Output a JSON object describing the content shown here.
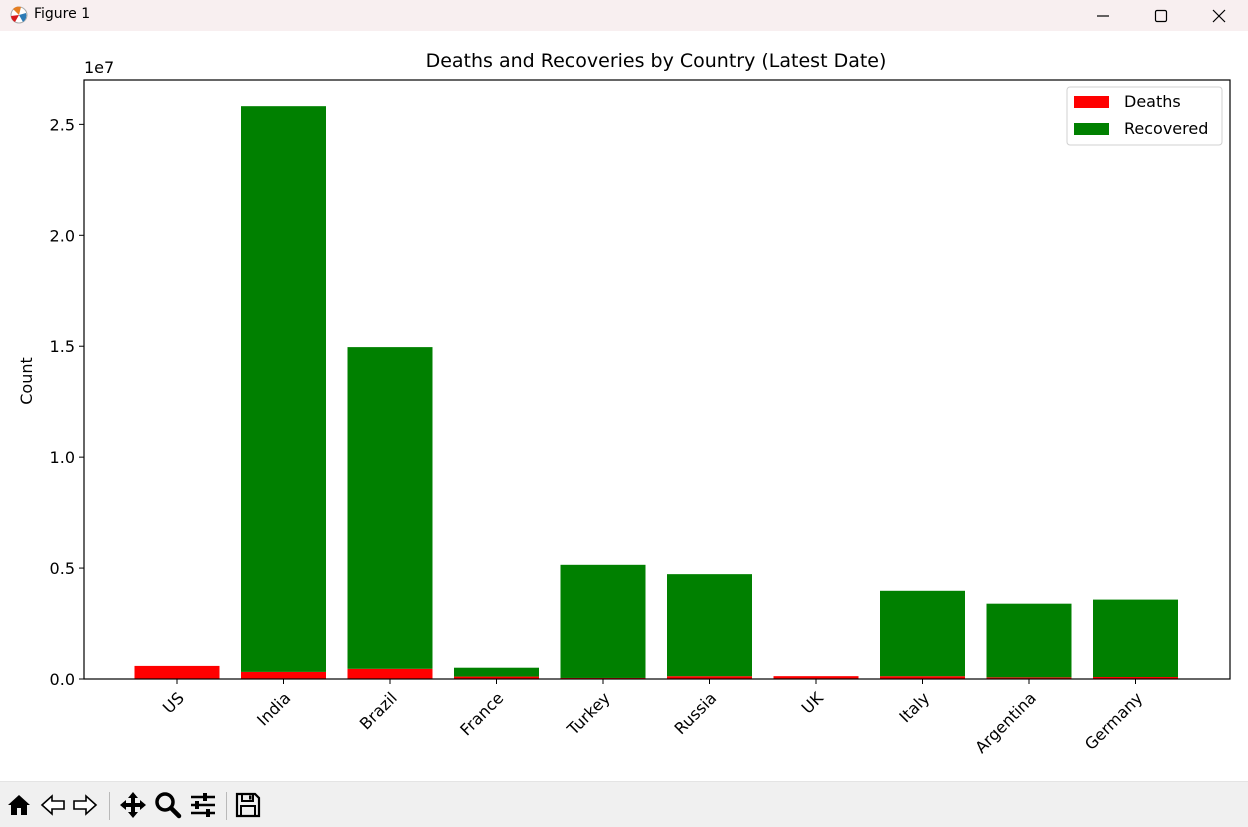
{
  "window": {
    "title": "Figure 1"
  },
  "toolbar": {
    "buttons": [
      "home-icon",
      "back-arrow-icon",
      "forward-arrow-icon",
      "pan-move-icon",
      "zoom-magnifier-icon",
      "configure-subplots-icon",
      "save-floppy-icon"
    ]
  },
  "colors": {
    "deaths": "#ff0000",
    "recovered": "#008000"
  },
  "chart_data": {
    "type": "bar",
    "stacked": true,
    "title": "Deaths and Recoveries by Country (Latest Date)",
    "xlabel": "",
    "ylabel": "Count",
    "offset_label": "1e7",
    "categories": [
      "US",
      "India",
      "Brazil",
      "France",
      "Turkey",
      "Russia",
      "UK",
      "Italy",
      "Argentina",
      "Germany"
    ],
    "series": [
      {
        "name": "Deaths",
        "color": "#ff0000",
        "values": [
          590000,
          320000,
          460000,
          109000,
          47000,
          126000,
          128000,
          126000,
          75000,
          89000
        ]
      },
      {
        "name": "Recovered",
        "color": "#008000",
        "values": [
          0,
          25500000,
          14500000,
          400000,
          5100000,
          4600000,
          0,
          3850000,
          3320000,
          3490000
        ]
      }
    ],
    "ylim": [
      0,
      27000000
    ],
    "yticks": [
      0,
      5000000,
      10000000,
      15000000,
      20000000,
      25000000
    ],
    "ytick_labels": [
      "0.0",
      "0.5",
      "1.0",
      "1.5",
      "2.0",
      "2.5"
    ],
    "grid": false,
    "legend": "top-right"
  }
}
